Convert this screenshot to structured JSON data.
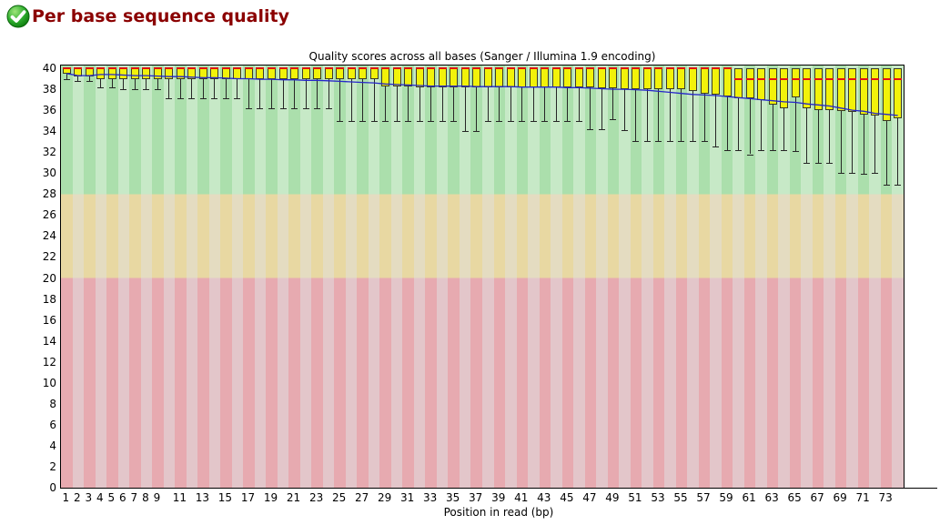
{
  "header": {
    "status": "pass",
    "title": "Per base sequence quality"
  },
  "chart_data": {
    "type": "boxplot",
    "title": "Quality scores across all bases (Sanger / Illumina 1.9 encoding)",
    "xlabel": "Position in read (bp)",
    "ylabel": "",
    "ylim": [
      0,
      40.3
    ],
    "ytick_step": 2,
    "xtick_labels": [
      "1",
      "2",
      "3",
      "4",
      "5",
      "6",
      "7",
      "8",
      "9",
      "11",
      "13",
      "15",
      "17",
      "19",
      "21",
      "23",
      "25",
      "27",
      "29",
      "31",
      "33",
      "35",
      "37",
      "39",
      "41",
      "43",
      "45",
      "47",
      "49",
      "51",
      "53",
      "55",
      "57",
      "59",
      "61",
      "63",
      "65",
      "67",
      "69",
      "71",
      "73"
    ],
    "bands": [
      {
        "label": "good",
        "range": [
          28,
          40.3
        ]
      },
      {
        "label": "reasonable",
        "range": [
          20,
          28
        ]
      },
      {
        "label": "poor",
        "range": [
          0,
          20
        ]
      }
    ],
    "colors": {
      "green_dark": "#abdfac",
      "green_light": "#c7e9c7",
      "orange_dark": "#e8d8a2",
      "orange_light": "#e4dcc1",
      "red_dark": "#e7aab0",
      "red_light": "#e3c6ca",
      "box_fill": "#f2f20a",
      "box_border": "#3a3a2a",
      "median": "#e01313",
      "mean_line": "#2626c9",
      "whisker": "#262626"
    },
    "positions": [
      1,
      2,
      3,
      4,
      5,
      6,
      7,
      8,
      9,
      10,
      11,
      12,
      13,
      14,
      15,
      16,
      17,
      18,
      19,
      20,
      21,
      22,
      23,
      24,
      25,
      26,
      27,
      28,
      29,
      30,
      31,
      32,
      33,
      34,
      35,
      36,
      37,
      38,
      39,
      40,
      41,
      42,
      43,
      44,
      45,
      46,
      47,
      48,
      49,
      50,
      51,
      52,
      53,
      54,
      55,
      56,
      57,
      58,
      59,
      60,
      61,
      62,
      63,
      64,
      65,
      66,
      67,
      68,
      69,
      70,
      71,
      72,
      73,
      74
    ],
    "series": {
      "lower_whisker": [
        39,
        38.8,
        38.8,
        38.2,
        38.2,
        38,
        38,
        38,
        38,
        37.1,
        37.1,
        37.1,
        37.1,
        37.1,
        37.1,
        37.1,
        36.2,
        36.2,
        36.2,
        36.2,
        36.2,
        36.2,
        36.2,
        36.2,
        35,
        35,
        35,
        35,
        35,
        35,
        35,
        35,
        35,
        35,
        35,
        34,
        34,
        35,
        35,
        35,
        35,
        35,
        35,
        35,
        35,
        35,
        34.2,
        34.2,
        35.1,
        34.1,
        33.1,
        33.1,
        33.1,
        33.1,
        33.1,
        33.1,
        33.1,
        32.5,
        32.2,
        32.2,
        31.8,
        32.2,
        32.2,
        32.2,
        32.1,
        31,
        31,
        31,
        30,
        30,
        29.9,
        30,
        28.9,
        28.9
      ],
      "q1": [
        39.5,
        39.2,
        39.2,
        39,
        39,
        39,
        39,
        39,
        39,
        39,
        39,
        39,
        39,
        39,
        39,
        39,
        39,
        39,
        39,
        39,
        39,
        39,
        39,
        39,
        39,
        39,
        39,
        39,
        38.3,
        38.3,
        38.3,
        38.2,
        38.2,
        38.2,
        38.2,
        38.2,
        38.2,
        38.2,
        38.2,
        38.2,
        38.2,
        38.2,
        38.2,
        38.2,
        38.2,
        38.2,
        38.2,
        38.1,
        38.1,
        38,
        38,
        38,
        38,
        38,
        38,
        37.8,
        37.6,
        37.5,
        37.3,
        37.1,
        37.1,
        37,
        36.5,
        36.2,
        37.2,
        36.2,
        36,
        36,
        35.9,
        35.8,
        35.6,
        35.5,
        35,
        35.2
      ],
      "median": [
        40,
        40,
        40,
        40,
        40,
        40,
        40,
        40,
        40,
        40,
        40,
        40,
        40,
        40,
        40,
        40,
        40,
        40,
        40,
        40,
        40,
        40,
        40,
        40,
        40,
        40,
        40,
        40,
        40,
        40,
        40,
        40,
        40,
        40,
        40,
        40,
        40,
        40,
        40,
        40,
        40,
        40,
        40,
        40,
        40,
        40,
        40,
        40,
        40,
        40,
        40,
        40,
        40,
        40,
        40,
        40,
        40,
        40,
        40,
        39,
        39,
        39,
        39,
        39,
        39,
        39,
        39,
        39,
        39,
        39,
        39,
        39,
        39,
        39
      ],
      "q3": [
        40,
        40,
        40,
        40,
        40,
        40,
        40,
        40,
        40,
        40,
        40,
        40,
        40,
        40,
        40,
        40,
        40,
        40,
        40,
        40,
        40,
        40,
        40,
        40,
        40,
        40,
        40,
        40,
        40,
        40,
        40,
        40,
        40,
        40,
        40,
        40,
        40,
        40,
        40,
        40,
        40,
        40,
        40,
        40,
        40,
        40,
        40,
        40,
        40,
        40,
        40,
        40,
        40,
        40,
        40,
        40,
        40,
        40,
        40,
        40,
        40,
        40,
        40,
        40,
        40,
        40,
        40,
        40,
        40,
        40,
        40,
        40,
        40,
        40
      ],
      "upper_whisker": [
        40,
        40,
        40,
        40,
        40,
        40,
        40,
        40,
        40,
        40,
        40,
        40,
        40,
        40,
        40,
        40,
        40,
        40,
        40,
        40,
        40,
        40,
        40,
        40,
        40,
        40,
        40,
        40,
        40,
        40,
        40,
        40,
        40,
        40,
        40,
        40,
        40,
        40,
        40,
        40,
        40,
        40,
        40,
        40,
        40,
        40,
        40,
        40,
        40,
        40,
        40,
        40,
        40,
        40,
        40,
        40,
        40,
        40,
        40,
        40,
        40,
        40,
        40,
        40,
        40,
        40,
        40,
        40,
        40,
        40,
        40,
        40,
        40,
        40
      ],
      "mean": [
        39.5,
        39.3,
        39.3,
        39.4,
        39.4,
        39.35,
        39.3,
        39.3,
        39.25,
        39.2,
        39.2,
        39.15,
        39.1,
        39.1,
        39.05,
        39,
        39,
        38.95,
        38.95,
        38.9,
        38.9,
        38.85,
        38.85,
        38.8,
        38.75,
        38.7,
        38.65,
        38.6,
        38.5,
        38.45,
        38.4,
        38.35,
        38.3,
        38.3,
        38.3,
        38.3,
        38.25,
        38.25,
        38.25,
        38.25,
        38.2,
        38.2,
        38.2,
        38.2,
        38.15,
        38.15,
        38.1,
        38.05,
        38,
        38,
        37.95,
        37.9,
        37.8,
        37.7,
        37.6,
        37.5,
        37.45,
        37.4,
        37.3,
        37.2,
        37.1,
        37,
        36.9,
        36.8,
        36.75,
        36.6,
        36.5,
        36.4,
        36.2,
        36,
        35.9,
        35.7,
        35.6,
        35.5
      ]
    }
  }
}
